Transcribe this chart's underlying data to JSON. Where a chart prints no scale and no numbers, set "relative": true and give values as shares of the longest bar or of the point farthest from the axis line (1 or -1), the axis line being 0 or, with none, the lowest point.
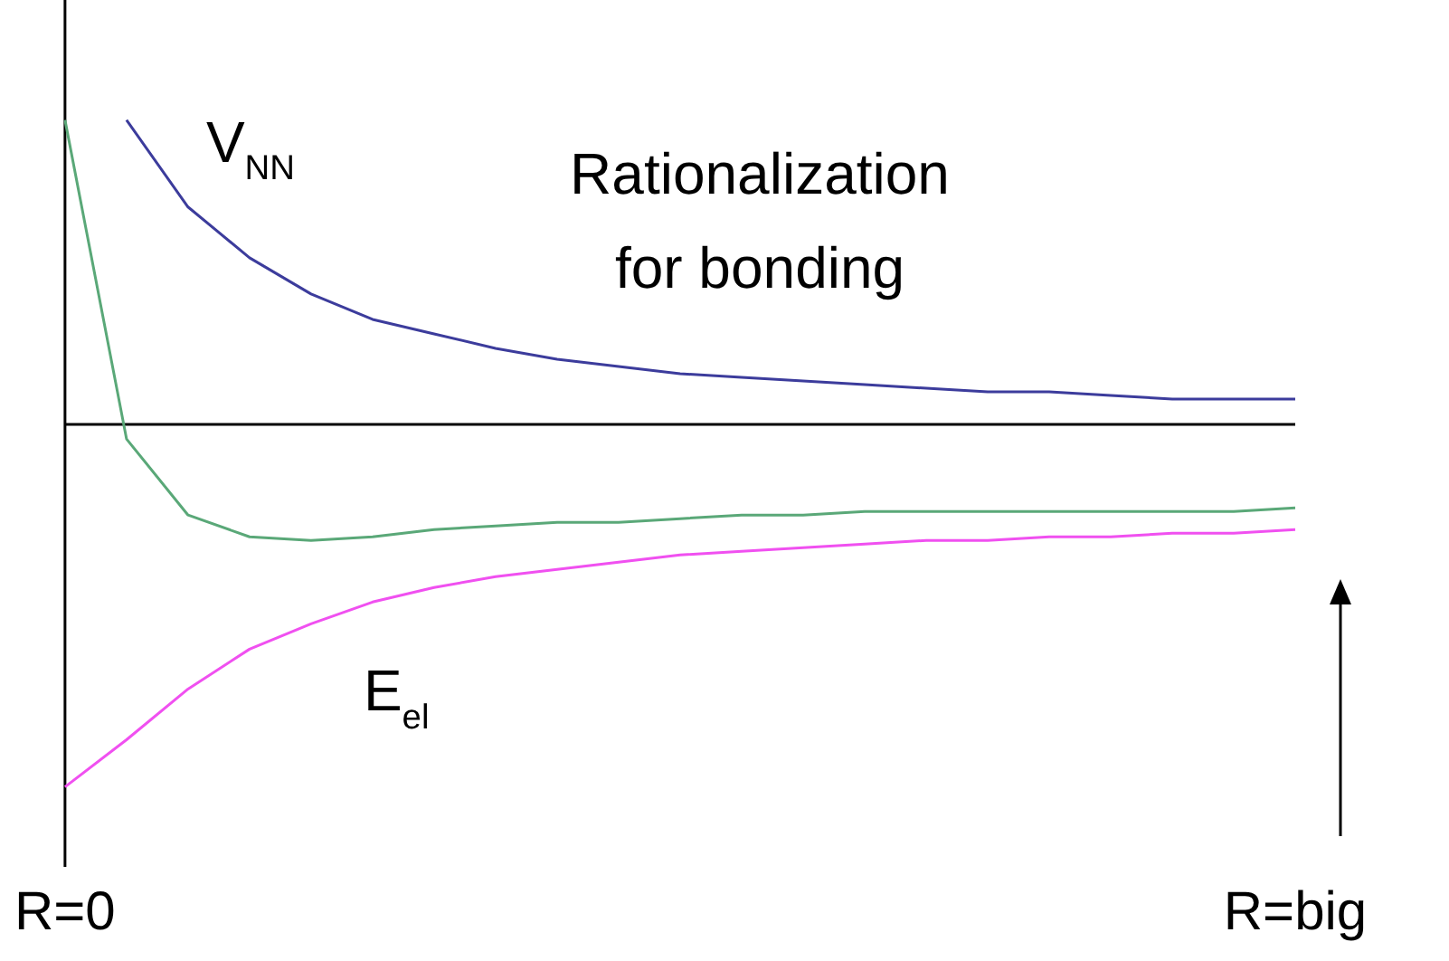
{
  "chart_data": {
    "type": "line",
    "title": "Rationalization\nfor bonding",
    "relative": true,
    "grid": false,
    "legend": false,
    "marker": "none",
    "categories": [
      "R=0",
      null,
      null,
      null,
      null,
      null,
      null,
      null,
      null,
      null,
      null,
      null,
      null,
      null,
      null,
      null,
      null,
      null,
      null,
      null,
      "R=big"
    ],
    "series": [
      {
        "name": "V$_{NN}$",
        "color": "#3c3c9c",
        "values": [
          null,
          0.84,
          0.6,
          0.46,
          0.36,
          0.29,
          0.25,
          0.21,
          0.18,
          0.16,
          0.14,
          0.13,
          0.12,
          0.11,
          0.1,
          0.09,
          0.09,
          0.08,
          0.07,
          0.07,
          0.07
        ]
      },
      {
        "color": "#5aa878",
        "values": [
          0.84,
          -0.04,
          -0.25,
          -0.31,
          -0.32,
          -0.31,
          -0.29,
          -0.28,
          -0.27,
          -0.27,
          -0.26,
          -0.25,
          -0.25,
          -0.24,
          -0.24,
          -0.24,
          -0.24,
          -0.24,
          -0.24,
          -0.24,
          -0.23
        ]
      },
      {
        "name": "E$_{el}$",
        "color": "#f050f0",
        "values": [
          -1,
          -0.87,
          -0.73,
          -0.62,
          -0.55,
          -0.49,
          -0.45,
          -0.42,
          -0.4,
          -0.38,
          -0.36,
          -0.35,
          -0.34,
          -0.33,
          -0.32,
          -0.32,
          -0.31,
          -0.31,
          -0.3,
          -0.3,
          -0.29
        ]
      }
    ]
  }
}
